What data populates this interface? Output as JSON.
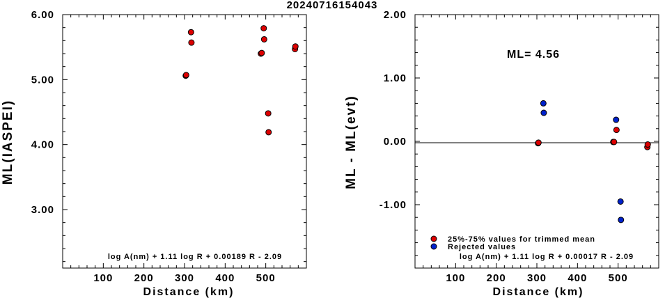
{
  "title": "20240716154043",
  "colors": {
    "accepted": "#dd0000",
    "rejected": "#0022cc"
  },
  "chart_data": [
    {
      "type": "scatter",
      "xlabel": "Distance (km)",
      "ylabel": "ML(IASPEI)",
      "xlim": [
        0,
        600
      ],
      "ylim": [
        2.1,
        6.0
      ],
      "xticks": [
        100,
        200,
        300,
        400,
        500
      ],
      "xtick_labels": [
        "100",
        "200",
        "300",
        "400",
        "500"
      ],
      "yticks": [
        3.0,
        4.0,
        5.0,
        6.0
      ],
      "ytick_labels": [
        "3.00",
        "4.00",
        "5.00",
        "6.00"
      ],
      "formula": "log A(nm) + 1.11 log R + 0.00189 R - 2.09",
      "series": [
        {
          "points": [
            [
              303,
              5.06
            ],
            [
              304,
              5.07
            ],
            [
              316,
              5.73
            ],
            [
              317,
              5.57
            ],
            [
              488,
              5.4
            ],
            [
              490,
              5.41
            ],
            [
              495,
              5.79
            ],
            [
              496,
              5.62
            ],
            [
              506,
              4.48
            ],
            [
              507,
              4.19
            ],
            [
              572,
              5.47
            ],
            [
              573,
              5.51
            ]
          ]
        }
      ]
    },
    {
      "type": "scatter",
      "xlabel": "Distance (km)",
      "ylabel": "ML - ML(evt)",
      "xlim": [
        0,
        600
      ],
      "ylim": [
        -2.0,
        2.0
      ],
      "xticks": [
        100,
        200,
        300,
        400,
        500
      ],
      "xtick_labels": [
        "100",
        "200",
        "300",
        "400",
        "500"
      ],
      "yticks": [
        -1.0,
        0.0,
        1.0,
        2.0
      ],
      "ytick_labels": [
        "-1.00",
        "0.00",
        "1.00",
        "2.00"
      ],
      "reference_line": 0.0,
      "annotation": "ML= 4.56",
      "formula": "log A(nm) + 1.11 log R + 0.00017 R - 2.09",
      "legend": [
        "25%-75% values for trimmed mean",
        "Rejected values"
      ],
      "series": [
        {
          "name": "25%-75% values for trimmed mean",
          "points": [
            [
              303,
              -0.03
            ],
            [
              304,
              -0.02
            ],
            [
              488,
              -0.01
            ],
            [
              490,
              -0.01
            ],
            [
              496,
              0.18
            ],
            [
              572,
              -0.09
            ],
            [
              573,
              -0.05
            ]
          ]
        },
        {
          "name": "Rejected values",
          "points": [
            [
              316,
              0.6
            ],
            [
              317,
              0.45
            ],
            [
              495,
              0.34
            ],
            [
              506,
              -0.95
            ],
            [
              507,
              -1.24
            ]
          ]
        }
      ]
    }
  ]
}
